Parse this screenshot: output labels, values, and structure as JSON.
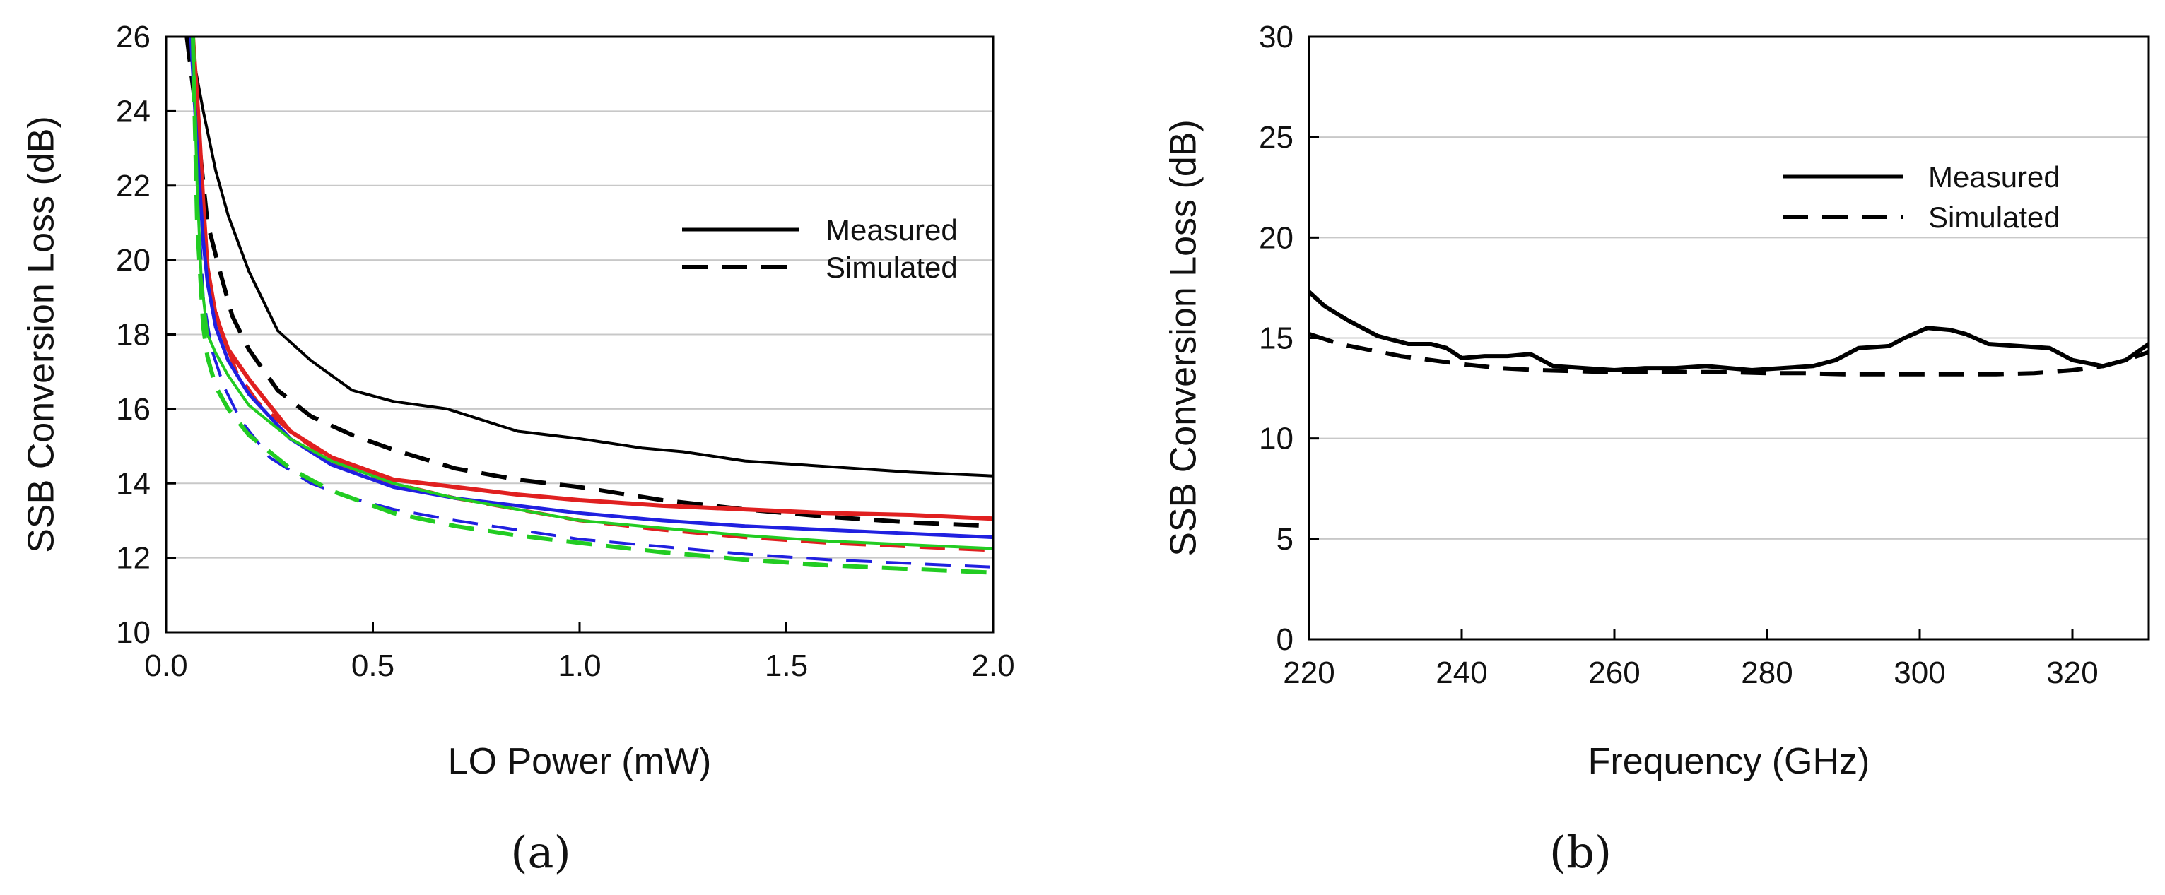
{
  "chart_data": [
    {
      "type": "line",
      "panel_label": "(a)",
      "xlabel": "LO Power (mW)",
      "ylabel": "SSB Conversion Loss (dB)",
      "xlim": [
        0.0,
        2.0
      ],
      "ylim": [
        10,
        26
      ],
      "xticks": [
        0.0,
        0.5,
        1.0,
        1.5,
        2.0
      ],
      "xtick_labels": [
        "0.0",
        "0.5",
        "1.0",
        "1.5",
        "2.0"
      ],
      "yticks": [
        10,
        12,
        14,
        16,
        18,
        20,
        22,
        24,
        26
      ],
      "ytick_labels": [
        "10",
        "12",
        "14",
        "16",
        "18",
        "20",
        "22",
        "24",
        "26"
      ],
      "grid": "horizontal",
      "legend": {
        "placement": "upper-right",
        "entries": [
          {
            "label": "Measured",
            "style": "solid"
          },
          {
            "label": "Simulated",
            "style": "dashed"
          }
        ]
      },
      "series": [
        {
          "name": "Measured (black)",
          "color": "#000000",
          "style": "solid",
          "width": 4,
          "x": [
            0.05,
            0.07,
            0.09,
            0.12,
            0.15,
            0.2,
            0.27,
            0.35,
            0.45,
            0.55,
            0.68,
            0.85,
            1.0,
            1.15,
            1.25,
            1.4,
            1.6,
            1.8,
            2.0
          ],
          "y": [
            26,
            25.2,
            24.0,
            22.4,
            21.2,
            19.7,
            18.1,
            17.3,
            16.5,
            16.2,
            16.0,
            15.4,
            15.2,
            14.95,
            14.85,
            14.6,
            14.45,
            14.3,
            14.2
          ]
        },
        {
          "name": "Simulated (black)",
          "color": "#000000",
          "style": "dashed",
          "width": 6,
          "x": [
            0.05,
            0.07,
            0.1,
            0.13,
            0.16,
            0.2,
            0.27,
            0.35,
            0.45,
            0.55,
            0.7,
            0.85,
            1.0,
            1.2,
            1.4,
            1.6,
            1.8,
            2.0
          ],
          "y": [
            26,
            24.2,
            21.0,
            19.7,
            18.5,
            17.6,
            16.5,
            15.8,
            15.3,
            14.9,
            14.4,
            14.1,
            13.9,
            13.55,
            13.3,
            13.1,
            12.95,
            12.85
          ]
        },
        {
          "name": "Measured (red)",
          "color": "#e02020",
          "style": "solid",
          "width": 6,
          "x": [
            0.065,
            0.08,
            0.09,
            0.1,
            0.12,
            0.15,
            0.2,
            0.3,
            0.4,
            0.55,
            0.7,
            0.85,
            1.0,
            1.2,
            1.4,
            1.6,
            1.8,
            2.0
          ],
          "y": [
            26,
            23.5,
            21.5,
            19.8,
            18.5,
            17.6,
            16.8,
            15.4,
            14.7,
            14.1,
            13.9,
            13.7,
            13.55,
            13.4,
            13.3,
            13.2,
            13.15,
            13.05
          ]
        },
        {
          "name": "Simulated (red)",
          "color": "#e02020",
          "style": "dashed",
          "width": 5,
          "x": [
            0.065,
            0.08,
            0.1,
            0.13,
            0.17,
            0.22,
            0.3,
            0.4,
            0.55,
            0.7,
            0.85,
            1.0,
            1.2,
            1.4,
            1.6,
            1.8,
            2.0
          ],
          "y": [
            26,
            22.5,
            19.5,
            18.2,
            17.0,
            16.2,
            15.4,
            14.6,
            14.0,
            13.6,
            13.3,
            13.0,
            12.75,
            12.55,
            12.4,
            12.3,
            12.2
          ]
        },
        {
          "name": "Measured (blue)",
          "color": "#2020e0",
          "style": "solid",
          "width": 5,
          "x": [
            0.06,
            0.075,
            0.09,
            0.1,
            0.12,
            0.15,
            0.2,
            0.3,
            0.4,
            0.55,
            0.7,
            0.85,
            1.0,
            1.2,
            1.4,
            1.6,
            1.8,
            2.0
          ],
          "y": [
            26,
            23.0,
            20.5,
            19.4,
            18.2,
            17.3,
            16.4,
            15.2,
            14.5,
            13.9,
            13.6,
            13.4,
            13.2,
            13.0,
            12.85,
            12.75,
            12.65,
            12.55
          ]
        },
        {
          "name": "Simulated (blue)",
          "color": "#2020e0",
          "style": "dashed",
          "width": 4,
          "x": [
            0.06,
            0.075,
            0.09,
            0.11,
            0.14,
            0.18,
            0.25,
            0.35,
            0.45,
            0.55,
            0.7,
            0.85,
            1.0,
            1.2,
            1.4,
            1.6,
            1.8,
            2.0
          ],
          "y": [
            26,
            22.0,
            19.0,
            17.6,
            16.6,
            15.7,
            14.7,
            14.0,
            13.6,
            13.3,
            13.0,
            12.75,
            12.5,
            12.3,
            12.1,
            11.95,
            11.85,
            11.75
          ]
        },
        {
          "name": "Measured (green)",
          "color": "#22cc22",
          "style": "solid",
          "width": 4,
          "x": [
            0.065,
            0.075,
            0.085,
            0.1,
            0.12,
            0.15,
            0.2,
            0.3,
            0.4,
            0.55,
            0.7,
            0.85,
            1.0,
            1.2,
            1.4,
            1.6,
            1.8,
            2.0
          ],
          "y": [
            26,
            22.0,
            19.5,
            18.0,
            17.5,
            16.9,
            16.1,
            15.2,
            14.6,
            14.0,
            13.6,
            13.3,
            13.0,
            12.8,
            12.6,
            12.45,
            12.35,
            12.25
          ]
        },
        {
          "name": "Simulated (green)",
          "color": "#22cc22",
          "style": "dashed",
          "width": 6,
          "x": [
            0.065,
            0.075,
            0.09,
            0.1,
            0.12,
            0.15,
            0.2,
            0.3,
            0.4,
            0.55,
            0.7,
            0.85,
            1.0,
            1.2,
            1.4,
            1.6,
            1.8,
            2.0
          ],
          "y": [
            26,
            21.0,
            18.2,
            17.4,
            16.6,
            16.0,
            15.3,
            14.4,
            13.8,
            13.2,
            12.85,
            12.6,
            12.4,
            12.15,
            11.95,
            11.8,
            11.7,
            11.6
          ]
        }
      ]
    },
    {
      "type": "line",
      "panel_label": "(b)",
      "xlabel": "Frequency (GHz)",
      "ylabel": "SSB Conversion Loss (dB)",
      "xlim": [
        220,
        330
      ],
      "ylim": [
        0,
        30
      ],
      "xticks": [
        220,
        240,
        260,
        280,
        300,
        320
      ],
      "xtick_labels": [
        "220",
        "240",
        "260",
        "280",
        "300",
        "320"
      ],
      "yticks": [
        0,
        5,
        10,
        15,
        20,
        25,
        30
      ],
      "ytick_labels": [
        "0",
        "5",
        "10",
        "15",
        "20",
        "25",
        "30"
      ],
      "grid": "horizontal",
      "legend": {
        "placement": "upper-right",
        "entries": [
          {
            "label": "Measured",
            "style": "solid"
          },
          {
            "label": "Simulated",
            "style": "dashed"
          }
        ]
      },
      "series": [
        {
          "name": "Measured",
          "color": "#000000",
          "style": "solid",
          "width": 6,
          "x": [
            220,
            222,
            225,
            229,
            233,
            236,
            238,
            240,
            243,
            246,
            249,
            252,
            256,
            260,
            264,
            268,
            272,
            275,
            278,
            282,
            286,
            289,
            292,
            296,
            298,
            301,
            304,
            306,
            309,
            313,
            317,
            320,
            324,
            327,
            330
          ],
          "y": [
            17.3,
            16.6,
            15.9,
            15.1,
            14.7,
            14.7,
            14.5,
            14.0,
            14.1,
            14.1,
            14.2,
            13.6,
            13.5,
            13.4,
            13.5,
            13.5,
            13.6,
            13.5,
            13.4,
            13.5,
            13.6,
            13.9,
            14.5,
            14.6,
            15.0,
            15.5,
            15.4,
            15.2,
            14.7,
            14.6,
            14.5,
            13.9,
            13.6,
            13.9,
            14.7
          ]
        },
        {
          "name": "Simulated",
          "color": "#000000",
          "style": "dashed",
          "width": 6,
          "x": [
            220,
            224,
            228,
            232,
            236,
            240,
            245,
            250,
            255,
            260,
            265,
            270,
            275,
            280,
            285,
            290,
            295,
            300,
            305,
            310,
            315,
            320,
            324,
            327,
            330
          ],
          "y": [
            15.2,
            14.7,
            14.4,
            14.1,
            13.9,
            13.7,
            13.5,
            13.4,
            13.35,
            13.3,
            13.3,
            13.3,
            13.3,
            13.25,
            13.25,
            13.2,
            13.2,
            13.2,
            13.2,
            13.2,
            13.25,
            13.4,
            13.6,
            13.9,
            14.3
          ]
        }
      ]
    }
  ]
}
